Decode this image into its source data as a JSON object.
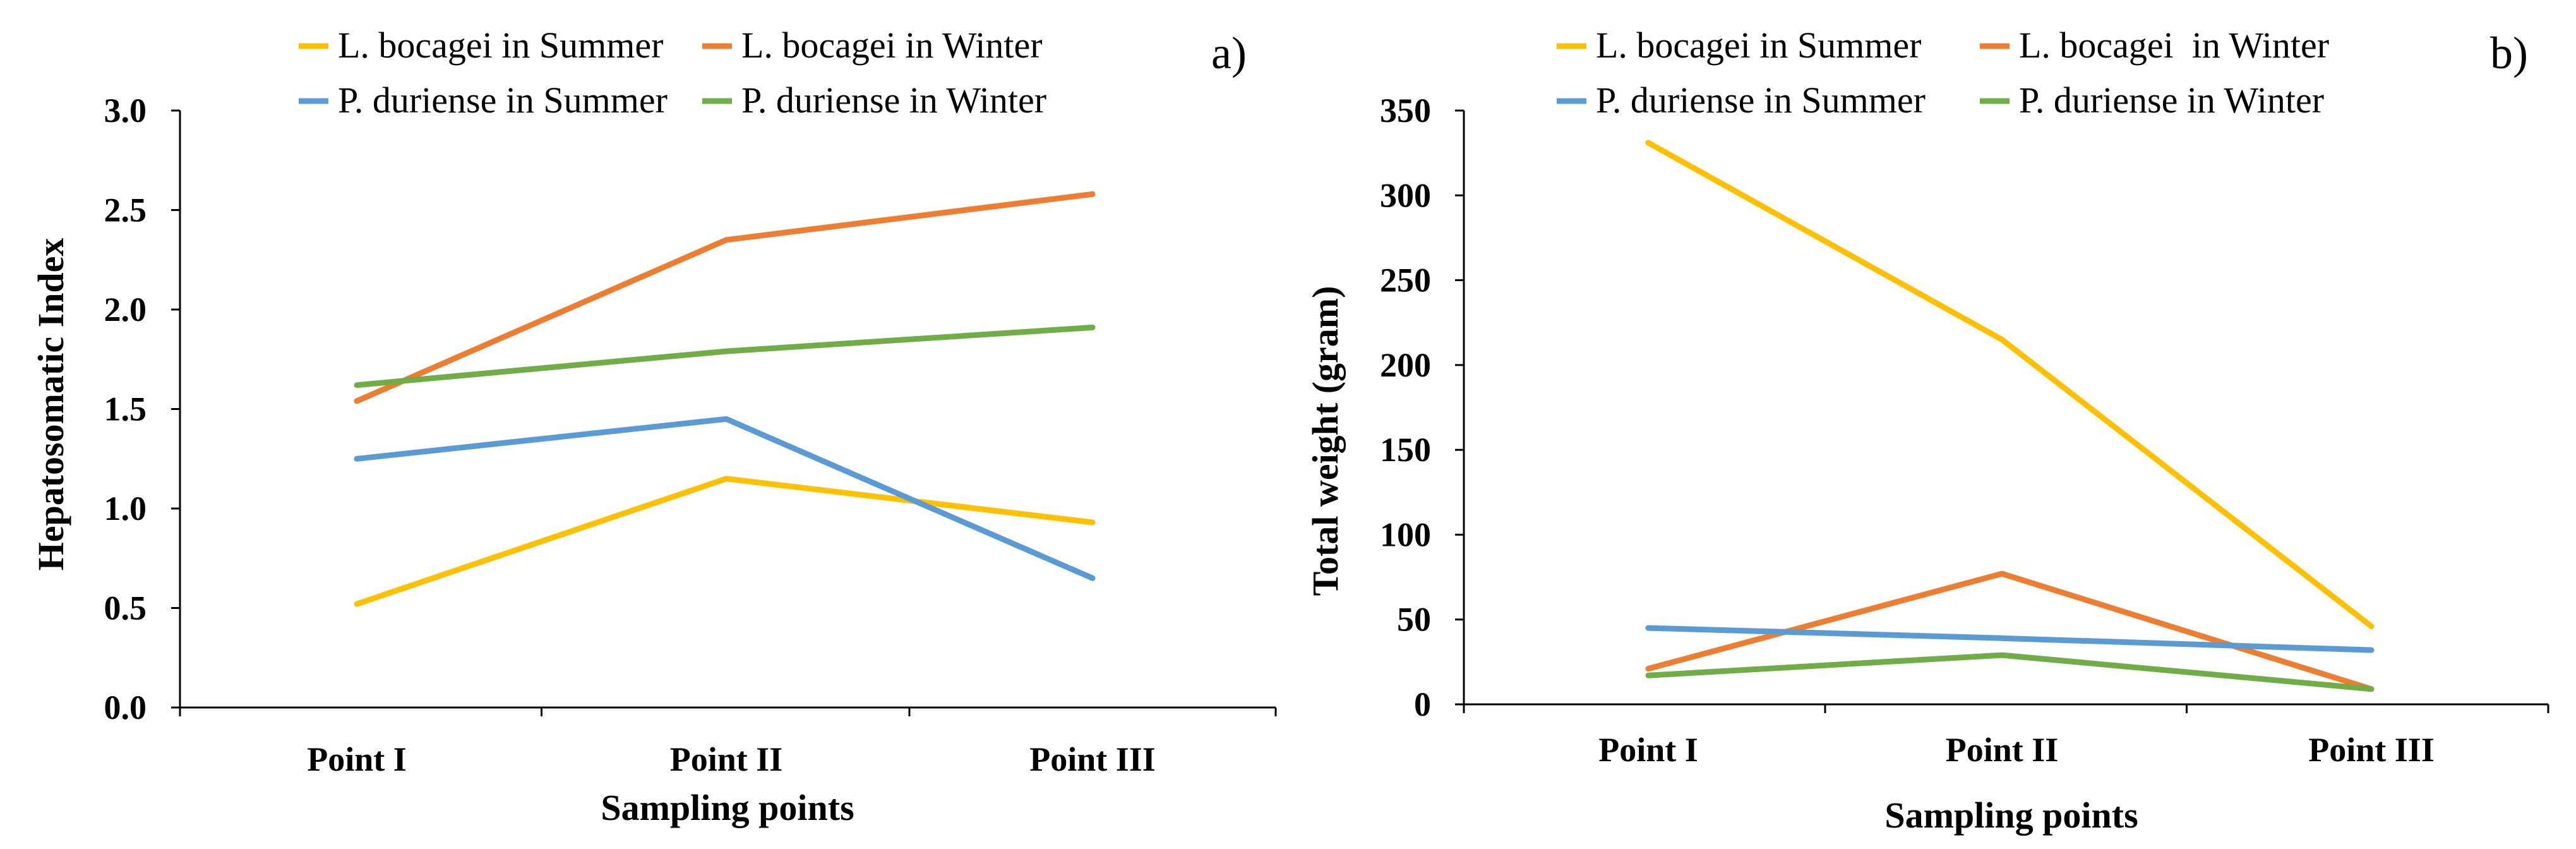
{
  "colors": {
    "lb_summer": "#FFC000",
    "lb_winter": "#ED7D31",
    "pd_summer": "#5B9BD5",
    "pd_winter": "#70AD47"
  },
  "chart_data": [
    {
      "type": "line",
      "panel_label": "a)",
      "title": "",
      "xlabel": "Sampling points",
      "ylabel": "Hepatosomatic Index",
      "categories": [
        "Point I",
        "Point II",
        "Point III"
      ],
      "ylim": [
        0,
        3
      ],
      "yticks": [
        0,
        0.5,
        1,
        1.5,
        2,
        2.5,
        3
      ],
      "ytick_labels": [
        "0.0",
        "0.5",
        "1.0",
        "1.5",
        "2.0",
        "2.5",
        "3.0"
      ],
      "legend": "top",
      "series": [
        {
          "name": "L. bocagei in Summer",
          "color_key": "lb_summer",
          "values": [
            0.52,
            1.15,
            0.93
          ]
        },
        {
          "name": "L. bocagei in Winter",
          "color_key": "lb_winter",
          "values": [
            1.54,
            2.35,
            2.58
          ]
        },
        {
          "name": "P. duriense in Summer",
          "color_key": "pd_summer",
          "values": [
            1.25,
            1.45,
            0.65
          ]
        },
        {
          "name": "P. duriense in Winter",
          "color_key": "pd_winter",
          "values": [
            1.62,
            1.79,
            1.91
          ]
        }
      ]
    },
    {
      "type": "line",
      "panel_label": "b)",
      "title": "",
      "xlabel": "Sampling points",
      "ylabel": "Total weight (gram)",
      "categories": [
        "Point I",
        "Point II",
        "Point III"
      ],
      "ylim": [
        0,
        350
      ],
      "yticks": [
        0,
        50,
        100,
        150,
        200,
        250,
        300,
        350
      ],
      "ytick_labels": [
        "0",
        "50",
        "100",
        "150",
        "200",
        "250",
        "300",
        "350"
      ],
      "legend": "top",
      "series": [
        {
          "name": "L. bocagei in Summer",
          "color_key": "lb_summer",
          "values": [
            331,
            215,
            46
          ]
        },
        {
          "name": "L. bocagei  in Winter",
          "color_key": "lb_winter",
          "values": [
            21,
            77,
            9
          ]
        },
        {
          "name": "P. duriense in Summer",
          "color_key": "pd_summer",
          "values": [
            45,
            39,
            32
          ]
        },
        {
          "name": "P. duriense in Winter",
          "color_key": "pd_winter",
          "values": [
            17,
            29,
            9
          ]
        }
      ]
    }
  ]
}
